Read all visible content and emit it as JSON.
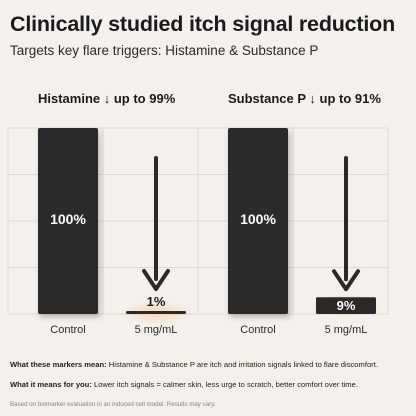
{
  "headline": "Clinically studied itch signal reduction",
  "subheadline": "Targets key flare triggers: Histamine & Substance P",
  "chart_data": [
    {
      "type": "bar",
      "title": "Histamine ↓ up to 99%",
      "categories": [
        "Control",
        "5 mg/mL"
      ],
      "values": [
        100,
        1
      ],
      "data_labels": [
        "100%",
        "1%"
      ],
      "ylim": [
        0,
        100
      ],
      "grid": true
    },
    {
      "type": "bar",
      "title": "Substance P ↓ up to 91%",
      "categories": [
        "Control",
        "5 mg/mL"
      ],
      "values": [
        100,
        9
      ],
      "data_labels": [
        "100%",
        "9%"
      ],
      "ylim": [
        0,
        100
      ],
      "grid": true
    }
  ],
  "notes": [
    {
      "label": "What these markers mean:",
      "text": "Histamine & Substance P are itch and irritation signals linked to flare discomfort."
    },
    {
      "label": "What it means for you:",
      "text": "Lower itch signals = calmer skin, less urge to scratch, better comfort over time."
    }
  ],
  "footnote": "Based on biomarker evaluation in an induced cell model. Results may vary.",
  "colors": {
    "background": "#f4f1ed",
    "control_bar": "#2b2a29",
    "treated_bar": "#2b2a29",
    "grid": "#dedad5",
    "arrow": "#2b2a29"
  }
}
